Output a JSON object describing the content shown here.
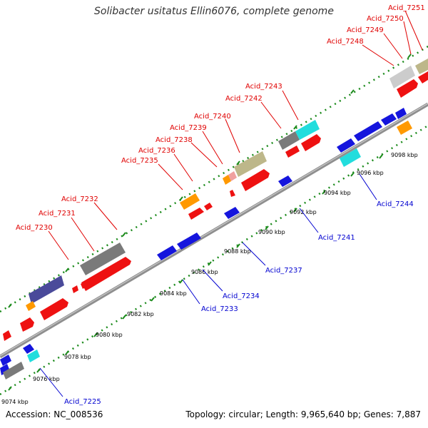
{
  "title": "Solibacter usitatus Ellin6076, complete genome",
  "accession": "Accession: NC_008536",
  "summary": "Topology: circular; Length: 9,965,640 bp; Genes: 7,887",
  "colors": {
    "backbone": "#9a9a9a",
    "dots": "#1a8a1a",
    "red_label": "#e00000",
    "blue_label": "#0000d0",
    "gene_red": "#ee1111",
    "gene_blue": "#1515dd",
    "gene_orange": "#ff9900",
    "gene_cyan": "#22dddd",
    "gene_gray": "#7a7a7a",
    "gene_khaki": "#bdb78a",
    "gene_navy": "#4a4a9a",
    "gene_pink": "#f0a0a0"
  },
  "ticks": [
    "9074 kbp",
    "9076 kbp",
    "9078 kbp",
    "9080 kbp",
    "9082 kbp",
    "9084 kbp",
    "9086 kbp",
    "9088 kbp",
    "9090 kbp",
    "9092 kbp",
    "9094 kbp",
    "9096 kbp",
    "9098 kbp"
  ],
  "forward_labels": [
    "Acid_7230",
    "Acid_7231",
    "Acid_7232",
    "Acid_7235",
    "Acid_7236",
    "Acid_7238",
    "Acid_7239",
    "Acid_7240",
    "Acid_7242",
    "Acid_7243",
    "Acid_7248",
    "Acid_7249",
    "Acid_7250",
    "Acid_7251"
  ],
  "reverse_labels": [
    "Acid_7225",
    "Acid_7233",
    "Acid_7234",
    "Acid_7237",
    "Acid_7241",
    "Acid_7244"
  ]
}
